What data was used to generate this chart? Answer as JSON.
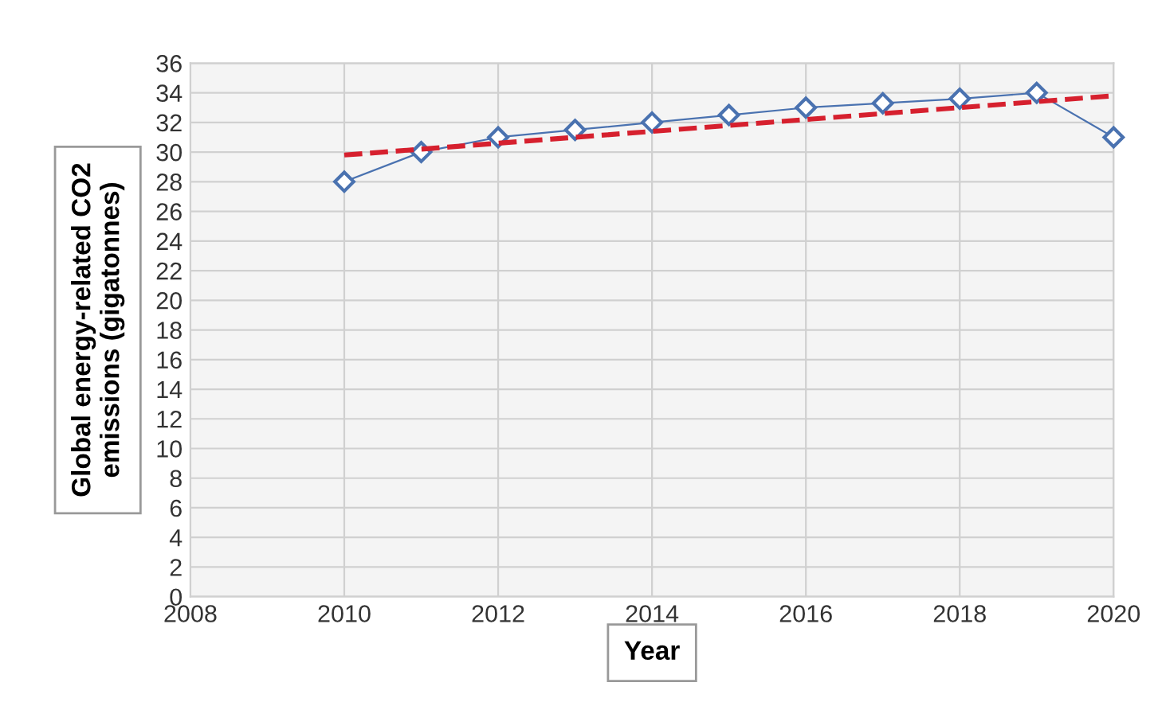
{
  "chart_data": {
    "type": "line",
    "xlabel": "Year",
    "ylabel": "Global energy-related CO2\nemissions (gigatonnes)",
    "xlim": [
      2008,
      2020
    ],
    "xticks": [
      2008,
      2010,
      2012,
      2014,
      2016,
      2018,
      2020
    ],
    "ylim": [
      0,
      36
    ],
    "yticks": [
      0,
      2,
      4,
      6,
      8,
      10,
      12,
      14,
      16,
      18,
      20,
      22,
      24,
      26,
      28,
      30,
      32,
      34,
      36
    ],
    "grid": true,
    "series": [
      {
        "color": "#4a72b0",
        "marker": "diamond",
        "x": [
          2010,
          2011,
          2012,
          2013,
          2014,
          2015,
          2016,
          2017,
          2018,
          2019,
          2020
        ],
        "values": [
          28,
          30,
          31,
          31.5,
          32,
          32.5,
          33,
          33.3,
          33.6,
          34,
          31
        ]
      },
      {
        "color": "#d6202e",
        "marker": "none",
        "line_style": "dashed",
        "x": [
          2010,
          2020
        ],
        "values": [
          29.8,
          33.8
        ]
      }
    ]
  }
}
